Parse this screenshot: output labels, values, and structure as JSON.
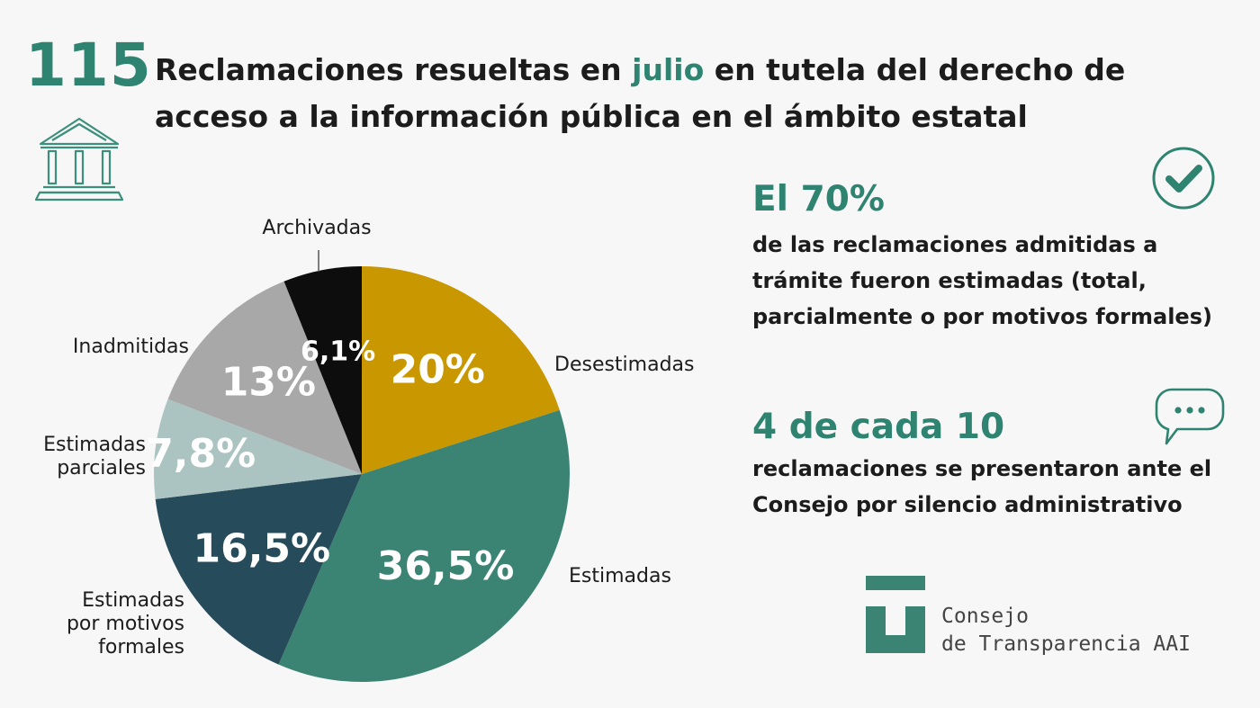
{
  "header": {
    "big_number": "115",
    "title_part1": "Reclamaciones resueltas en ",
    "title_highlight": "julio",
    "title_part2": " en tutela del derecho de acceso a la información pública en el ámbito estatal"
  },
  "chart_data": {
    "type": "pie",
    "slices": [
      {
        "label": "Desestimadas",
        "value": 20,
        "display": "20%",
        "color": "#c99700"
      },
      {
        "label": "Estimadas",
        "value": 36.5,
        "display": "36,5%",
        "color": "#3b8474"
      },
      {
        "label": "Estimadas por motivos formales",
        "value": 16.5,
        "display": "16,5%",
        "color": "#264b5a"
      },
      {
        "label": "Estimadas parciales",
        "value": 7.8,
        "display": "7,8%",
        "color": "#abc4c1"
      },
      {
        "label": "Inadmitidas",
        "value": 13,
        "display": "13%",
        "color": "#a8a8a8"
      },
      {
        "label": "Archivadas",
        "value": 6.1,
        "display": "6,1%",
        "color": "#0d0d0d"
      }
    ]
  },
  "stats": [
    {
      "headline": "El 70%",
      "text": "de las reclamaciones admitidas a trámite fueron estimadas (total, parcialmente o por motivos formales)",
      "icon": "check-circle-icon"
    },
    {
      "headline": "4 de cada 10",
      "text": "reclamaciones se presentaron ante el Consejo por silencio administrativo",
      "icon": "chat-bubble-icon"
    }
  ],
  "logo": {
    "line1": "Consejo",
    "line2": "de Transparencia AAI"
  },
  "colors": {
    "accent": "#2e8470",
    "text": "#1c1c1c"
  }
}
